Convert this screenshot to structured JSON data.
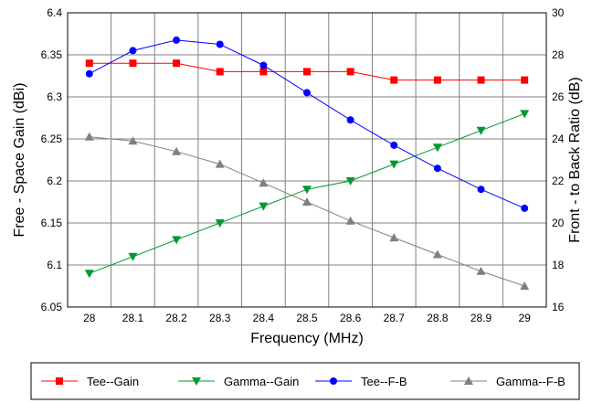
{
  "chart_data": {
    "type": "line",
    "title": "",
    "xlabel": "Frequency (MHz)",
    "ylabel_left": "Free - Space Gain (dBi)",
    "ylabel_right": "Front - to Back Ratio (dB)",
    "x": [
      28,
      28.1,
      28.2,
      28.3,
      28.4,
      28.5,
      28.6,
      28.7,
      28.8,
      28.9,
      29
    ],
    "x_tick_labels": [
      "28",
      "28.1",
      "28.2",
      "28.3",
      "28.4",
      "28.5",
      "28.6",
      "28.7",
      "28.8",
      "28.9",
      "29"
    ],
    "ylim_left": [
      6.05,
      6.4
    ],
    "left_tick_labels": [
      "6.05",
      "6.1",
      "6.15",
      "6.2",
      "6.25",
      "6.3",
      "6.35",
      "6.4"
    ],
    "ylim_right": [
      16,
      30
    ],
    "right_tick_labels": [
      "16",
      "18",
      "20",
      "22",
      "24",
      "26",
      "28",
      "30"
    ],
    "grid": true,
    "legend_position": "bottom",
    "series": [
      {
        "name": "Tee--Gain",
        "axis": "left",
        "color": "#ff0000",
        "line_color": "#ff0000",
        "marker": "square",
        "values": [
          6.34,
          6.34,
          6.34,
          6.33,
          6.33,
          6.33,
          6.33,
          6.32,
          6.32,
          6.32,
          6.32
        ]
      },
      {
        "name": "Gamma--Gain",
        "axis": "left",
        "color": "#009933",
        "line_color": "#009933",
        "marker": "triangle-down",
        "values": [
          6.09,
          6.11,
          6.13,
          6.15,
          6.17,
          6.19,
          6.2,
          6.22,
          6.24,
          6.26,
          6.28
        ]
      },
      {
        "name": "Tee--F-B",
        "axis": "right",
        "color": "#0000ff",
        "line_color": "#0000ff",
        "marker": "circle",
        "values": [
          27.1,
          28.2,
          28.7,
          28.5,
          27.5,
          26.2,
          24.9,
          23.7,
          22.6,
          21.6,
          20.7
        ]
      },
      {
        "name": "Gamma--F-B",
        "axis": "right",
        "color": "#808080",
        "line_color": "#808080",
        "marker": "triangle-up",
        "values": [
          24.1,
          23.9,
          23.4,
          22.8,
          21.9,
          21.0,
          20.1,
          19.3,
          18.5,
          17.7,
          17.0
        ]
      }
    ]
  }
}
